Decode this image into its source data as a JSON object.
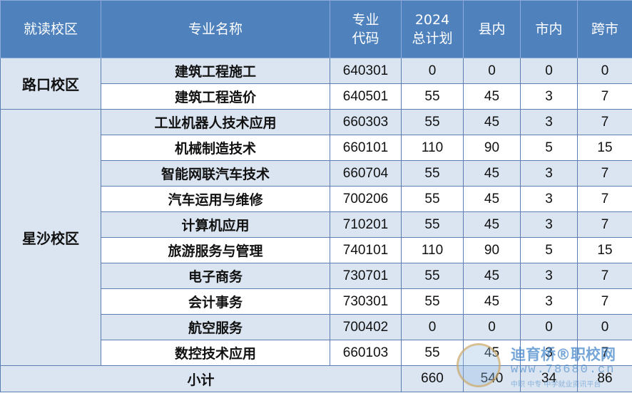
{
  "headers": {
    "campus": "就读校区",
    "major": "专业名称",
    "code_line1": "专业",
    "code_line2": "代码",
    "plan_line1": "2024",
    "plan_line2": "总计划",
    "county": "县内",
    "city": "市内",
    "cross": "跨市"
  },
  "campuses": {
    "lukou": "路口校区",
    "xingsha": "星沙校区"
  },
  "rows": [
    {
      "major": "建筑工程施工",
      "code": "640301",
      "plan": "0",
      "county": "0",
      "city": "0",
      "cross": "0"
    },
    {
      "major": "建筑工程造价",
      "code": "640501",
      "plan": "55",
      "county": "45",
      "city": "3",
      "cross": "7"
    },
    {
      "major": "工业机器人技术应用",
      "code": "660303",
      "plan": "55",
      "county": "45",
      "city": "3",
      "cross": "7"
    },
    {
      "major": "机械制造技术",
      "code": "660101",
      "plan": "110",
      "county": "90",
      "city": "5",
      "cross": "15"
    },
    {
      "major": "智能网联汽车技术",
      "code": "660704",
      "plan": "55",
      "county": "45",
      "city": "3",
      "cross": "7"
    },
    {
      "major": "汽车运用与维修",
      "code": "700206",
      "plan": "55",
      "county": "45",
      "city": "3",
      "cross": "7"
    },
    {
      "major": "计算机应用",
      "code": "710201",
      "plan": "55",
      "county": "45",
      "city": "3",
      "cross": "7"
    },
    {
      "major": "旅游服务与管理",
      "code": "740101",
      "plan": "110",
      "county": "90",
      "city": "5",
      "cross": "15"
    },
    {
      "major": "电子商务",
      "code": "730701",
      "plan": "55",
      "county": "45",
      "city": "3",
      "cross": "7"
    },
    {
      "major": "会计事务",
      "code": "730301",
      "plan": "55",
      "county": "45",
      "city": "3",
      "cross": "7"
    },
    {
      "major": "航空服务",
      "code": "700402",
      "plan": "0",
      "county": "0",
      "city": "0",
      "cross": "0"
    },
    {
      "major": "数控技术应用",
      "code": "660103",
      "plan": "55",
      "county": "45",
      "city": "3",
      "cross": "7"
    }
  ],
  "total": {
    "label": "小计",
    "plan": "660",
    "county": "540",
    "city": "34",
    "cross": "86"
  },
  "watermark": {
    "title": "迪育桥®职校网",
    "url": "www.78680.cn",
    "sub": "中职 中专 中学就业资讯平台"
  }
}
